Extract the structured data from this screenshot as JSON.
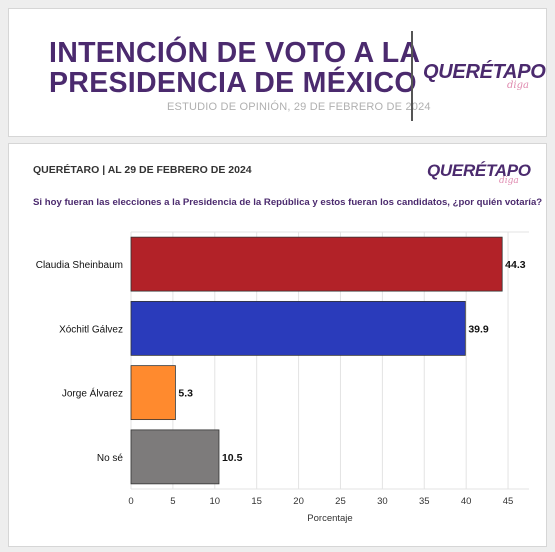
{
  "header": {
    "title_line1": "INTENCIÓN DE VOTO A LA",
    "title_line2": "PRESIDENCIA DE  MÉXICO",
    "subtitle": "ESTUDIO DE OPINIÓN, 29 DE FEBRERO DE 2024",
    "logo_main": "QUERÉTAPO",
    "logo_sub": "diga",
    "title_color": "#4b2a6e",
    "logo_accent_color": "#e08bb0"
  },
  "chart_card": {
    "location": "QUERÉTARO | AL 29 DE FEBRERO DE 2024",
    "question": "Si hoy fueran las elecciones a la Presidencia de la República y estos fueran los candidatos, ¿por quién votaría?",
    "logo_main": "QUERÉTAPO",
    "logo_sub": "diga"
  },
  "chart_data": {
    "type": "bar",
    "orientation": "horizontal",
    "categories": [
      "Claudia Sheinbaum",
      "Xóchitl Gálvez",
      "Jorge Álvarez",
      "No sé"
    ],
    "values": [
      44.3,
      39.9,
      5.3,
      10.5
    ],
    "value_labels": [
      "44.3",
      "39.9",
      "5.3",
      "10.5"
    ],
    "colors": [
      "#b22228",
      "#2a3bbb",
      "#ff8a2e",
      "#7d7b7b"
    ],
    "xlabel": "Porcentaje",
    "xlim": [
      0,
      47.5
    ],
    "xticks": [
      0,
      5,
      10,
      15,
      20,
      25,
      30,
      35,
      40,
      45
    ],
    "grid": true
  }
}
